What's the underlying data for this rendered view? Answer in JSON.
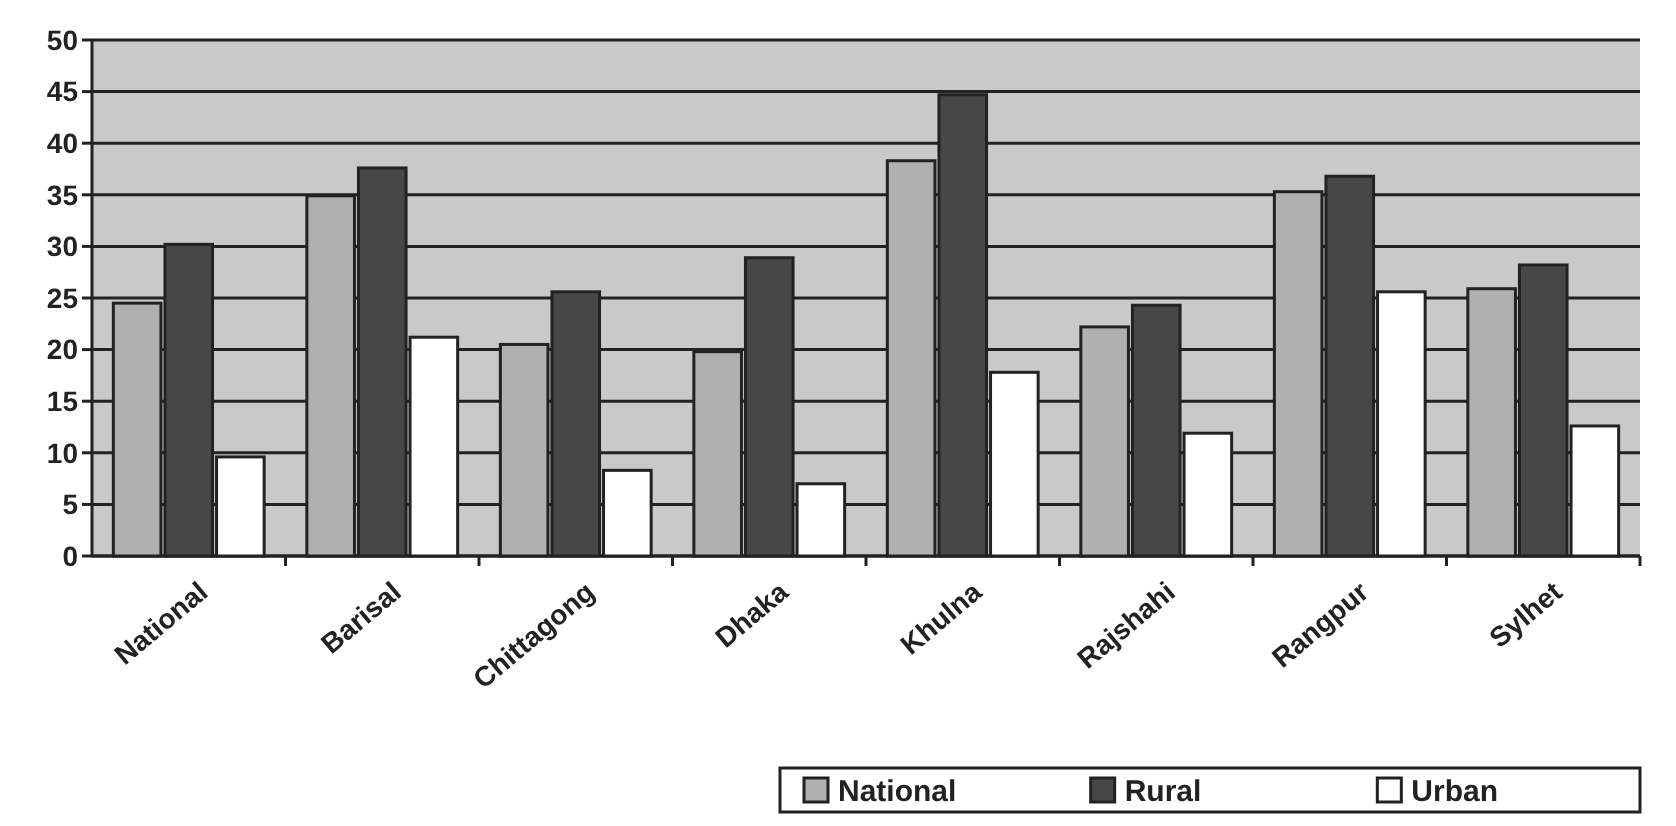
{
  "chart_data": {
    "type": "bar",
    "categories": [
      "National",
      "Barisal",
      "Chittagong",
      "Dhaka",
      "Khulna",
      "Rajshahi",
      "Rangpur",
      "Sylhet"
    ],
    "series": [
      {
        "name": "National",
        "color": "#b0b0b0",
        "values": [
          24.5,
          34.9,
          20.5,
          19.8,
          38.3,
          22.2,
          35.3,
          25.9
        ]
      },
      {
        "name": "Rural",
        "color": "#474747",
        "values": [
          30.2,
          37.6,
          25.6,
          28.9,
          44.7,
          24.3,
          36.8,
          28.2
        ]
      },
      {
        "name": "Urban",
        "color": "#ffffff",
        "values": [
          9.6,
          21.2,
          8.3,
          7.0,
          17.8,
          11.9,
          25.6,
          12.6
        ]
      }
    ],
    "ylim": [
      0,
      50
    ],
    "yticks": [
      0,
      5,
      10,
      15,
      20,
      25,
      30,
      35,
      40,
      45,
      50
    ],
    "grid": "y",
    "legend": "bottom right"
  }
}
